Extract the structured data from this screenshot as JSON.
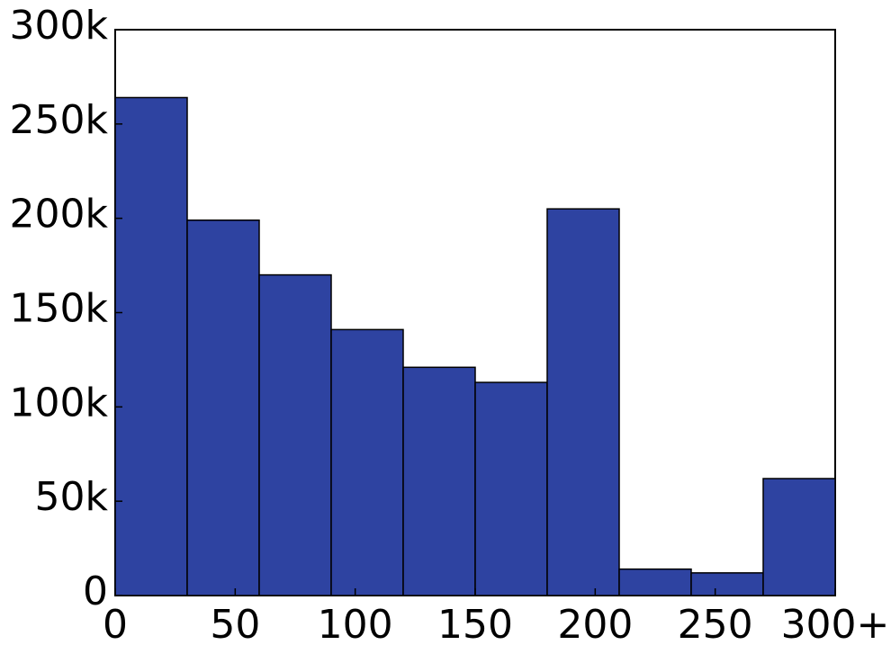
{
  "chart_data": {
    "type": "histogram",
    "bins": [
      0,
      30,
      60,
      90,
      120,
      150,
      180,
      210,
      240,
      270,
      300
    ],
    "values": [
      264000,
      199000,
      170000,
      141000,
      121000,
      113000,
      205000,
      14000,
      12000,
      62000
    ],
    "color": "#2e43a1",
    "xlim": [
      0,
      300
    ],
    "xticks": [
      0,
      50,
      100,
      150,
      200,
      250,
      {
        "value": 300,
        "label": "300+"
      }
    ],
    "ylim": [
      0,
      300000
    ],
    "yticks": [
      0,
      {
        "value": 50000,
        "label": "50k"
      },
      {
        "value": 100000,
        "label": "100k"
      },
      {
        "value": 150000,
        "label": "150k"
      },
      {
        "value": 200000,
        "label": "200k"
      },
      {
        "value": 250000,
        "label": "250k"
      },
      {
        "value": 300000,
        "label": "300k"
      }
    ]
  }
}
